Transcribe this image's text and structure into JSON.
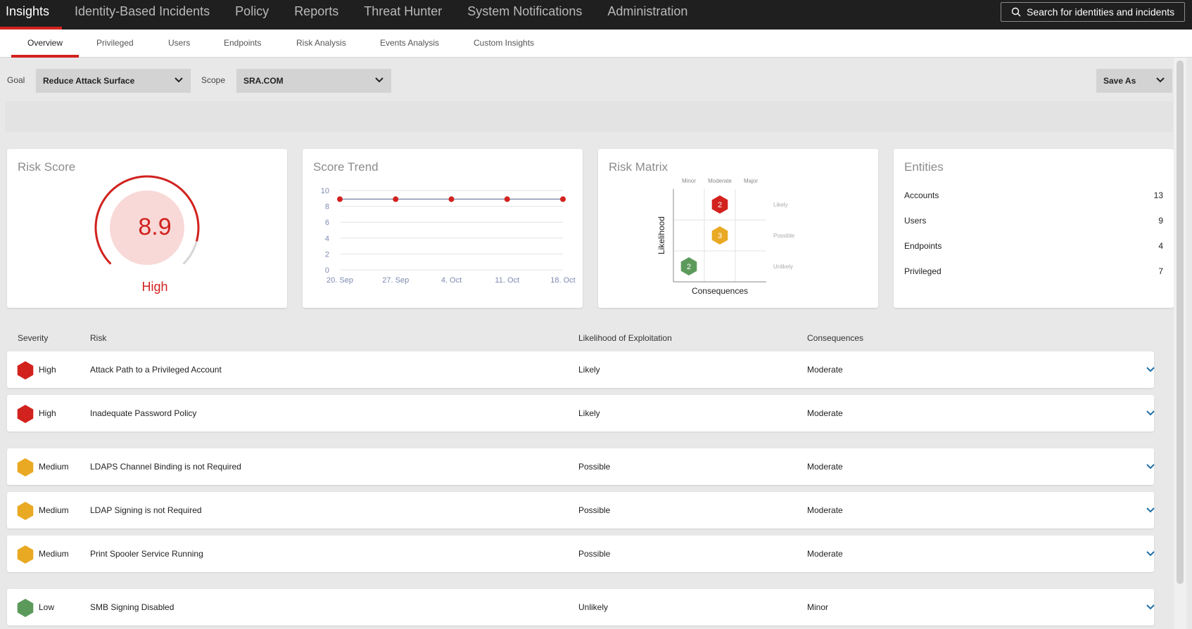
{
  "topnav": {
    "items": [
      {
        "label": "Insights",
        "active": true
      },
      {
        "label": "Identity-Based Incidents"
      },
      {
        "label": "Policy"
      },
      {
        "label": "Reports"
      },
      {
        "label": "Threat Hunter"
      },
      {
        "label": "System Notifications"
      },
      {
        "label": "Administration"
      }
    ],
    "search_placeholder": "Search for identities and incidents"
  },
  "subtabs": [
    {
      "label": "Overview",
      "active": true
    },
    {
      "label": "Privileged"
    },
    {
      "label": "Users"
    },
    {
      "label": "Endpoints"
    },
    {
      "label": "Risk Analysis"
    },
    {
      "label": "Events Analysis"
    },
    {
      "label": "Custom Insights"
    }
  ],
  "filters": {
    "goal_label": "Goal",
    "goal_value": "Reduce Attack Surface",
    "scope_label": "Scope",
    "scope_value": "SRA.COM",
    "save_as": "Save As"
  },
  "risk_score": {
    "title": "Risk Score",
    "value": "8.9",
    "level": "High",
    "gauge_fraction": 0.89
  },
  "score_trend": {
    "title": "Score Trend"
  },
  "chart_data": {
    "type": "line",
    "title": "Score Trend",
    "xlabel": "",
    "ylabel": "",
    "categories": [
      "20. Sep",
      "27. Sep",
      "4. Oct",
      "11. Oct",
      "18. Oct"
    ],
    "series": [
      {
        "values": [
          8.9,
          8.9,
          8.9,
          8.9,
          8.9
        ]
      }
    ],
    "ylim": [
      0,
      10
    ],
    "yticks": [
      0,
      2,
      4,
      6,
      8,
      10
    ],
    "grid": true
  },
  "risk_matrix": {
    "title": "Risk Matrix",
    "columns": [
      "Minor",
      "Moderate",
      "Major"
    ],
    "rows": [
      "Likely",
      "Possible",
      "Unlikely"
    ],
    "ylabel": "Likelihood",
    "xlabel": "Consequences",
    "markers": [
      {
        "count": "2",
        "row": "Likely",
        "column": "Moderate",
        "severity": "High"
      },
      {
        "count": "3",
        "row": "Possible",
        "column": "Moderate",
        "severity": "Medium"
      },
      {
        "count": "2",
        "row": "Unlikely",
        "column": "Minor",
        "severity": "Low"
      }
    ]
  },
  "entities": {
    "title": "Entities",
    "items": [
      {
        "label": "Accounts",
        "value": "13"
      },
      {
        "label": "Users",
        "value": "9"
      },
      {
        "label": "Endpoints",
        "value": "4"
      },
      {
        "label": "Privileged",
        "value": "7"
      }
    ]
  },
  "risks_table": {
    "headers": {
      "severity": "Severity",
      "risk": "Risk",
      "likelihood": "Likelihood of Exploitation",
      "consequences": "Consequences"
    },
    "rows": [
      {
        "severity": "High",
        "risk": "Attack Path to a Privileged Account",
        "likelihood": "Likely",
        "consequences": "Moderate"
      },
      {
        "severity": "High",
        "risk": "Inadequate Password Policy",
        "likelihood": "Likely",
        "consequences": "Moderate"
      },
      {
        "severity": "Medium",
        "risk": "LDAPS Channel Binding is not Required",
        "likelihood": "Possible",
        "consequences": "Moderate"
      },
      {
        "severity": "Medium",
        "risk": "LDAP Signing is not Required",
        "likelihood": "Possible",
        "consequences": "Moderate"
      },
      {
        "severity": "Medium",
        "risk": "Print Spooler Service Running",
        "likelihood": "Possible",
        "consequences": "Moderate"
      },
      {
        "severity": "Low",
        "risk": "SMB Signing Disabled",
        "likelihood": "Unlikely",
        "consequences": "Minor"
      }
    ]
  },
  "colors": {
    "accent": "#d2221e",
    "high": "#d2221e",
    "medium": "#e9a923",
    "low": "#5c9a5c",
    "expand": "#1f6fa8"
  }
}
